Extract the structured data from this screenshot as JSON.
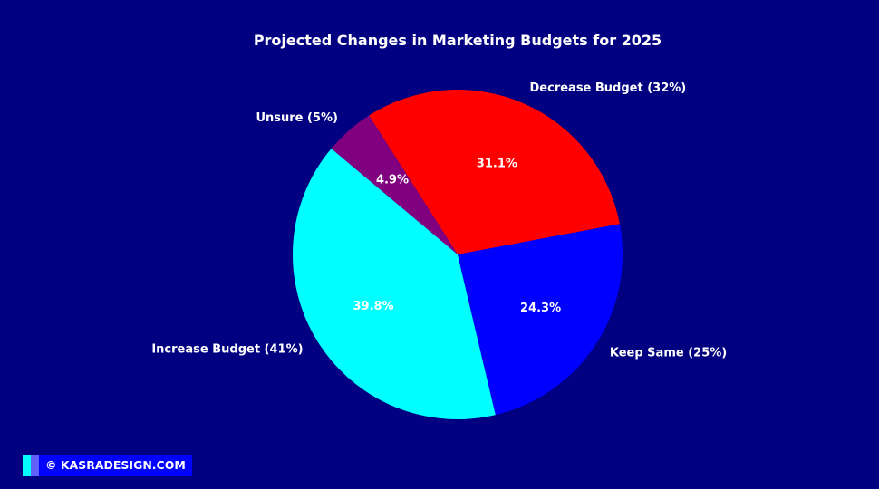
{
  "colors": {
    "background": "#000080",
    "text": "#ffffff",
    "badge_stripe_1": "#00ffff",
    "badge_stripe_2": "#6060ff",
    "badge_background": "#0000ff"
  },
  "chart_data": {
    "type": "pie",
    "title": "Projected Changes in Marketing Budgets for 2025",
    "start_angle_deg": 140,
    "direction": "counterclockwise",
    "slices": [
      {
        "label": "Increase Budget (41%)",
        "value": 41,
        "pct_label": "39.8%",
        "color": "#00ffff",
        "pct_text_color": "#ffffff"
      },
      {
        "label": "Keep Same (25%)",
        "value": 25,
        "pct_label": "24.3%",
        "color": "#0000ff",
        "pct_text_color": "#ffffff"
      },
      {
        "label": "Decrease Budget (32%)",
        "value": 32,
        "pct_label": "31.1%",
        "color": "#ff0000",
        "pct_text_color": "#ffffff"
      },
      {
        "label": "Unsure (5%)",
        "value": 5,
        "pct_label": "4.9%",
        "color": "#800080",
        "pct_text_color": "#ffffff"
      }
    ]
  },
  "watermark": {
    "text": "© KASRADESIGN.COM"
  }
}
